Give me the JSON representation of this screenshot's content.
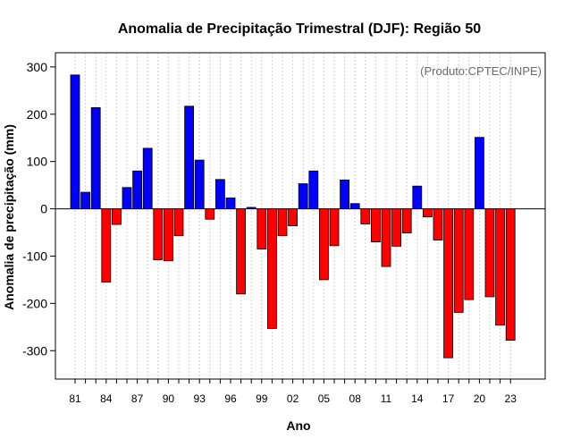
{
  "chart_data": {
    "type": "bar",
    "title": "Anomalia de Precipitação Trimestral (DJF): Região 50",
    "xlabel": "Ano",
    "ylabel": "Anomalia de precipitação (mm)",
    "credit": "(Produto:CPTEC/INPE)",
    "ylim": [
      -360,
      330
    ],
    "yticks": [
      -300,
      -200,
      -100,
      0,
      100,
      200,
      300
    ],
    "ytick_labels": [
      "-300",
      "-200",
      "-100",
      "0",
      "100",
      "200",
      "300"
    ],
    "xtick_labels": [
      "81",
      "84",
      "87",
      "90",
      "93",
      "96",
      "99",
      "02",
      "05",
      "08",
      "11",
      "14",
      "17",
      "20",
      "23"
    ],
    "grid": true,
    "colors": {
      "positive": "#0000ff",
      "negative": "#ff0000"
    },
    "categories": [
      "1981",
      "1982",
      "1983",
      "1984",
      "1985",
      "1986",
      "1987",
      "1988",
      "1989",
      "1990",
      "1991",
      "1992",
      "1993",
      "1994",
      "1995",
      "1996",
      "1997",
      "1998",
      "1999",
      "2000",
      "2001",
      "2002",
      "2003",
      "2004",
      "2005",
      "2006",
      "2007",
      "2008",
      "2009",
      "2010",
      "2011",
      "2012",
      "2013",
      "2014",
      "2015",
      "2016",
      "2017",
      "2018",
      "2019",
      "2020",
      "2021",
      "2022",
      "2023"
    ],
    "values": [
      283,
      35,
      214,
      -155,
      -33,
      45,
      80,
      128,
      -108,
      -110,
      -57,
      217,
      103,
      -22,
      62,
      23,
      -180,
      3,
      -85,
      -253,
      -57,
      -36,
      53,
      80,
      -150,
      -78,
      61,
      11,
      -32,
      -70,
      -122,
      -79,
      -51,
      48,
      -17,
      -66,
      -315,
      -219,
      -192,
      151,
      -186,
      -246,
      -278
    ]
  }
}
